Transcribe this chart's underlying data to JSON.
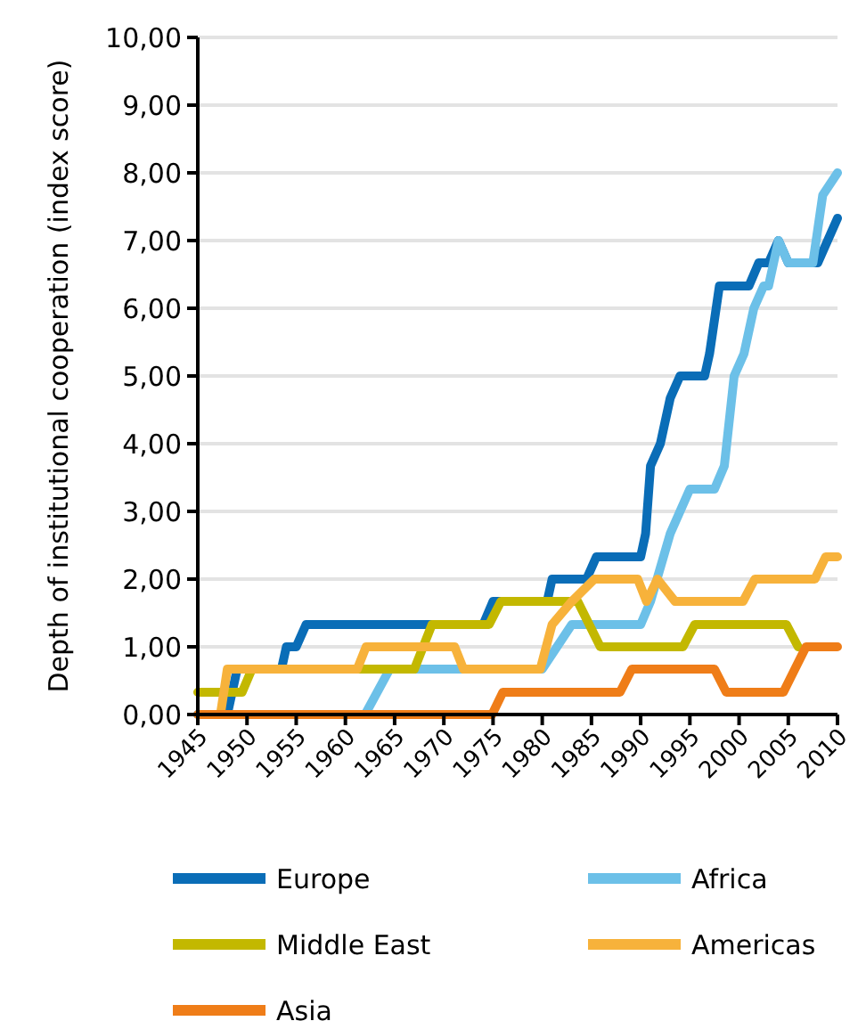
{
  "chart_data": {
    "type": "line",
    "ylabel": "Depth of institutional cooperation (index score)",
    "xlim": [
      1945,
      2010
    ],
    "xticks": [
      1945,
      1950,
      1955,
      1960,
      1965,
      1970,
      1975,
      1980,
      1985,
      1990,
      1995,
      2000,
      2005,
      2010
    ],
    "ylim": [
      0,
      10
    ],
    "yticks": [
      {
        "value": 0,
        "label": "0,00"
      },
      {
        "value": 1,
        "label": "1,00"
      },
      {
        "value": 2,
        "label": "2,00"
      },
      {
        "value": 3,
        "label": "3,00"
      },
      {
        "value": 4,
        "label": "4,00"
      },
      {
        "value": 5,
        "label": "5,00"
      },
      {
        "value": 6,
        "label": "6,00"
      },
      {
        "value": 7,
        "label": "7,00"
      },
      {
        "value": 8,
        "label": "8,00"
      },
      {
        "value": 9,
        "label": "9,00"
      },
      {
        "value": 10,
        "label": "10,00"
      }
    ],
    "grid": "y",
    "legend": "bottom",
    "marker": "none",
    "line_style": "solid",
    "series": [
      {
        "name": "Europe",
        "color": "#0a6db7",
        "x": [
          1945,
          1948,
          1949,
          1953.5,
          1954,
          1955,
          1956,
          1974,
          1975,
          1980.5,
          1981,
          1984.5,
          1985.5,
          1990,
          1990.5,
          1991,
          1992,
          1993,
          1994,
          1996.5,
          1997,
          1998,
          2001,
          2002,
          2003,
          2004,
          2005,
          2008,
          2010
        ],
        "values": [
          0,
          0,
          0.67,
          0.67,
          1,
          1,
          1.33,
          1.33,
          1.67,
          1.67,
          2,
          2,
          2.33,
          2.33,
          2.67,
          3.67,
          4,
          4.67,
          5,
          5,
          5.33,
          6.33,
          6.33,
          6.67,
          6.67,
          7,
          6.67,
          6.67,
          7.33
        ]
      },
      {
        "name": "Africa",
        "color": "#6cc0e8",
        "x": [
          1962,
          1964.5,
          1980,
          1981.5,
          1983,
          1990,
          1991,
          1993,
          1994,
          1995,
          1997.5,
          1998.5,
          1999.5,
          2000.5,
          2001.5,
          2002.5,
          2003,
          2004,
          2005,
          2007.5,
          2008.5,
          2010
        ],
        "values": [
          0,
          0.67,
          0.67,
          1,
          1.33,
          1.33,
          1.67,
          2.67,
          3,
          3.33,
          3.33,
          3.67,
          5,
          5.33,
          6,
          6.33,
          6.33,
          7,
          6.67,
          6.67,
          7.67,
          8
        ]
      },
      {
        "name": "Middle East",
        "color": "#c3b800",
        "x": [
          1945,
          1949.5,
          1950.5,
          1967,
          1968.8,
          1974.6,
          1975.8,
          1983.6,
          1985.9,
          1994.3,
          1995.5,
          2004.8,
          2006
        ],
        "values": [
          0.33,
          0.33,
          0.67,
          0.67,
          1.33,
          1.33,
          1.67,
          1.67,
          1,
          1,
          1.33,
          1.33,
          1
        ]
      },
      {
        "name": "Americas",
        "color": "#f7b23b",
        "x": [
          1947.3,
          1948,
          1961.2,
          1962.1,
          1971.1,
          1972,
          1979.8,
          1981,
          1983,
          1985.3,
          1989.7,
          1990.6,
          1991.7,
          1993.5,
          2000.4,
          2001.6,
          2007.7,
          2008.8,
          2010
        ],
        "values": [
          0,
          0.67,
          0.67,
          1,
          1,
          0.67,
          0.67,
          1.33,
          1.67,
          2,
          2,
          1.67,
          2,
          1.67,
          1.67,
          2,
          2,
          2.33,
          2.33
        ]
      },
      {
        "name": "Asia",
        "color": "#ef7d18",
        "x": [
          1945,
          1974.9,
          1976,
          1987.9,
          1989.1,
          1997.5,
          1998.7,
          2004.5,
          2006.8,
          2010
        ],
        "values": [
          0,
          0,
          0.33,
          0.33,
          0.67,
          0.67,
          0.33,
          0.33,
          1,
          1
        ]
      }
    ]
  }
}
